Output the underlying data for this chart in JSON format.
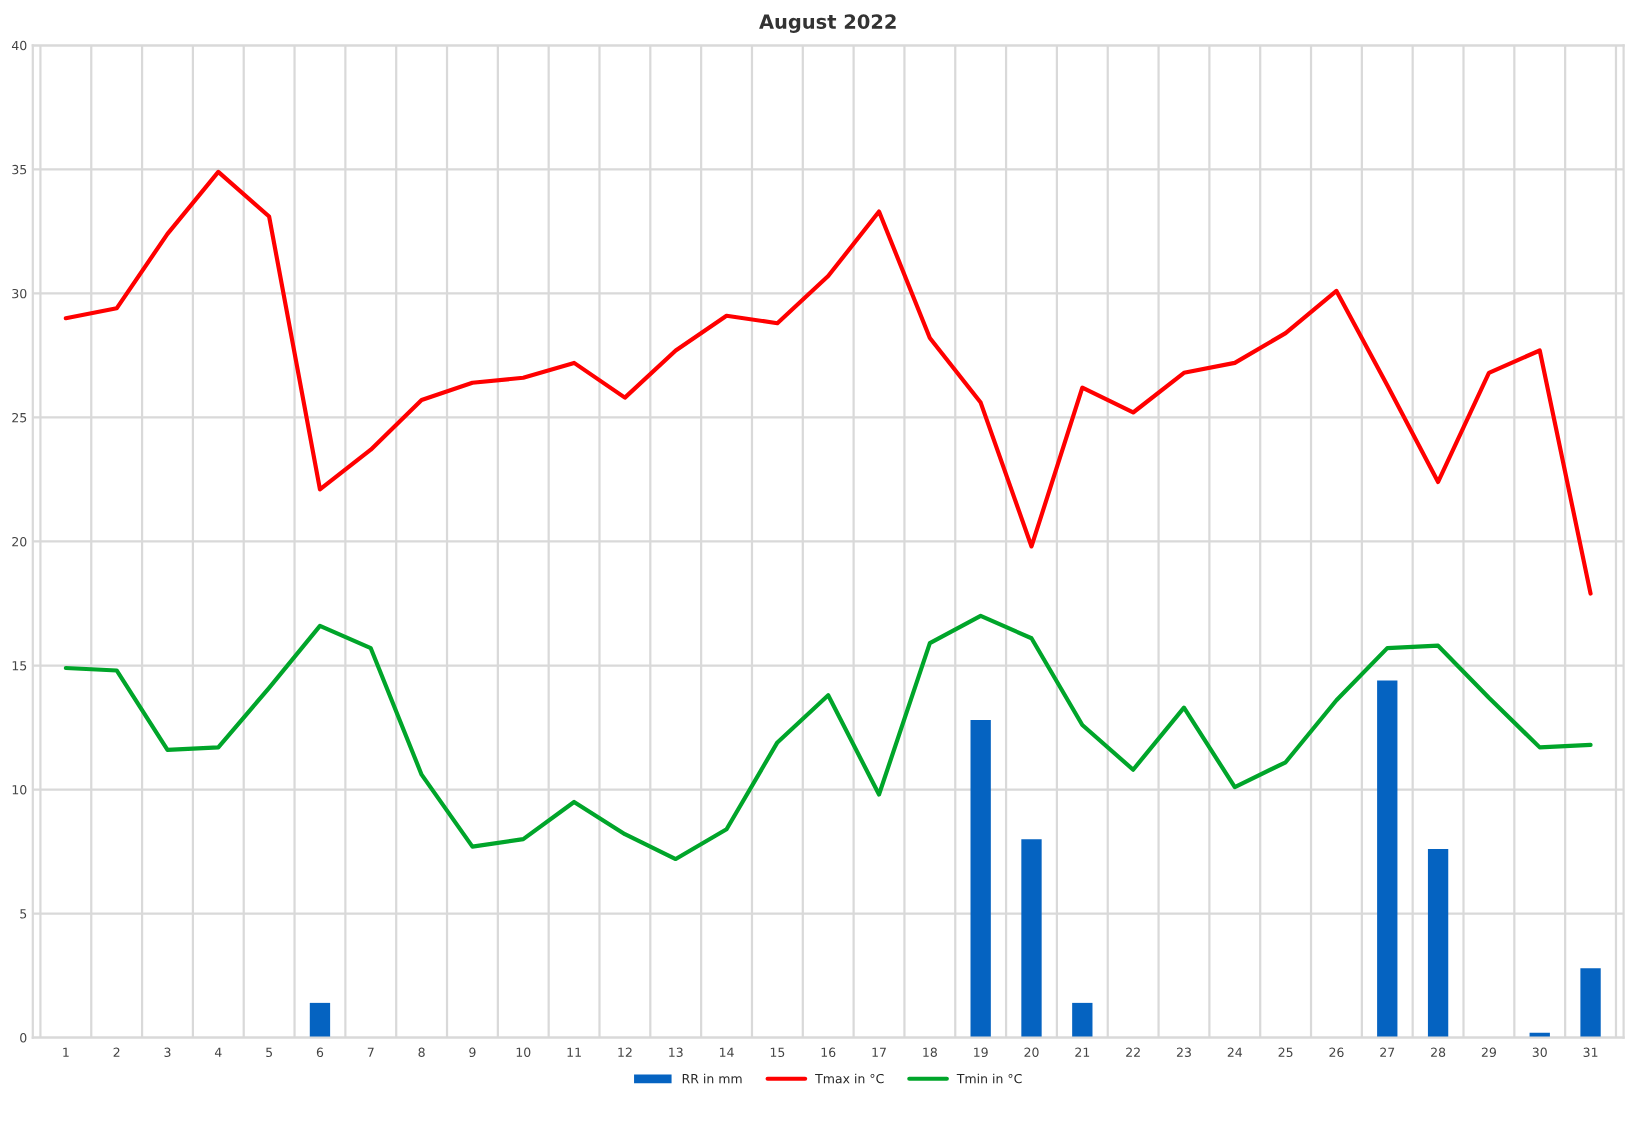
{
  "chart_data": {
    "type": "bar",
    "title": "August 2022",
    "categories": [
      "1",
      "2",
      "3",
      "4",
      "5",
      "6",
      "7",
      "8",
      "9",
      "10",
      "11",
      "12",
      "13",
      "14",
      "15",
      "16",
      "17",
      "18",
      "19",
      "20",
      "21",
      "22",
      "23",
      "24",
      "25",
      "26",
      "27",
      "28",
      "29",
      "30",
      "31"
    ],
    "series": [
      {
        "name": "RR in mm",
        "color": "#0563c1",
        "values": [
          null,
          null,
          null,
          null,
          null,
          1.4,
          null,
          null,
          null,
          null,
          null,
          null,
          null,
          null,
          null,
          null,
          null,
          null,
          12.8,
          8.0,
          1.4,
          null,
          null,
          null,
          null,
          null,
          14.4,
          7.6,
          null,
          0.2,
          2.8
        ]
      },
      {
        "name": "Tmax in °C",
        "type": "line",
        "color": "#ff0000",
        "values": [
          29.0,
          29.4,
          32.4,
          34.9,
          33.1,
          22.1,
          23.7,
          25.7,
          26.4,
          26.6,
          27.2,
          25.8,
          27.7,
          29.1,
          28.8,
          30.7,
          33.3,
          28.2,
          25.6,
          19.8,
          26.2,
          25.2,
          26.8,
          27.2,
          28.4,
          30.1,
          26.3,
          22.4,
          26.8,
          27.7,
          17.9
        ]
      },
      {
        "name": "Tmin in °C",
        "type": "line",
        "color": "#00a52a",
        "values": [
          14.9,
          14.8,
          11.6,
          11.7,
          14.1,
          16.6,
          15.7,
          10.6,
          7.7,
          8.0,
          9.5,
          8.2,
          7.2,
          8.4,
          11.9,
          13.8,
          9.8,
          15.9,
          17.0,
          16.1,
          12.6,
          10.8,
          13.3,
          10.1,
          11.1,
          13.6,
          15.7,
          15.8,
          13.7,
          11.7,
          11.8
        ]
      }
    ],
    "ylim": [
      0,
      40
    ],
    "yticks": [
      0,
      5,
      10,
      15,
      20,
      25,
      30,
      35,
      40
    ],
    "grid": true,
    "legend": "bottom",
    "marker": "none",
    "line_style": "solid"
  }
}
